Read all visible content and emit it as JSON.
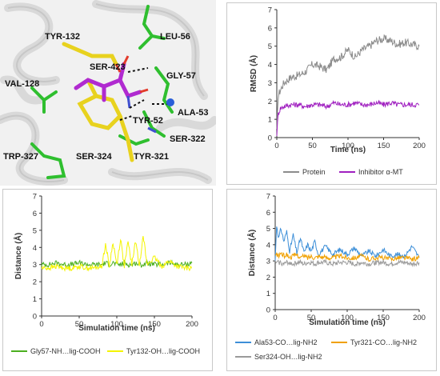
{
  "molecule": {
    "labels": [
      "TYR-132",
      "LEU-56",
      "SER-423",
      "GLY-57",
      "VAL-128",
      "ALA-53",
      "TYR-52",
      "SER-322",
      "TRP-327",
      "SER-324",
      "TYR-321"
    ]
  },
  "colors": {
    "protein": "#8c8c8c",
    "inhibitor": "#a020c0",
    "gly57": "#4caf20",
    "tyr132": "#f4f400",
    "ala53": "#3d8fd8",
    "tyr321": "#f0a000",
    "ser324": "#9a9a9a"
  },
  "chart_data": [
    {
      "type": "line",
      "id": "rmsd",
      "xlabel": "Time (ns)",
      "ylabel": "RMSD (Å)",
      "xlim": [
        0,
        200
      ],
      "ylim": [
        0,
        7
      ],
      "xticks": [
        "0",
        "50",
        "100",
        "150",
        "200"
      ],
      "yticks": [
        "0",
        "1",
        "2",
        "3",
        "4",
        "5",
        "6",
        "7"
      ],
      "legend_position": "bottom",
      "x": [
        0,
        2,
        5,
        10,
        20,
        30,
        40,
        50,
        60,
        70,
        80,
        90,
        100,
        110,
        120,
        130,
        140,
        150,
        160,
        170,
        180,
        190,
        200
      ],
      "series": [
        {
          "name": "Protein",
          "color_key": "protein",
          "values": [
            0.3,
            2.3,
            2.6,
            3.0,
            3.3,
            3.4,
            3.6,
            4.0,
            3.9,
            3.7,
            4.3,
            4.4,
            4.8,
            4.4,
            4.8,
            5.0,
            5.3,
            5.4,
            5.3,
            5.1,
            5.2,
            5.1,
            5.0
          ]
        },
        {
          "name": "Inhibitor α-MT",
          "color_key": "inhibitor",
          "values": [
            0.2,
            1.3,
            1.6,
            1.7,
            1.8,
            1.8,
            1.7,
            1.8,
            1.8,
            1.7,
            1.9,
            1.8,
            1.8,
            1.9,
            1.8,
            1.8,
            1.9,
            1.8,
            1.9,
            1.8,
            1.8,
            1.8,
            1.8
          ]
        }
      ]
    },
    {
      "type": "line",
      "id": "gly_tyr",
      "xlabel": "Simulation time (ns)",
      "ylabel": "Distance (Å)",
      "xlim": [
        0,
        200
      ],
      "ylim": [
        0,
        7
      ],
      "xticks": [
        "0",
        "50",
        "100",
        "150",
        "200"
      ],
      "yticks": [
        "0",
        "1",
        "2",
        "3",
        "4",
        "5",
        "6",
        "7"
      ],
      "legend_position": "bottom",
      "x": [
        0,
        10,
        20,
        30,
        40,
        50,
        60,
        70,
        80,
        85,
        90,
        95,
        100,
        105,
        110,
        115,
        120,
        125,
        130,
        135,
        140,
        150,
        160,
        170,
        180,
        190,
        200
      ],
      "series": [
        {
          "name": "Gly57-NH…lig-COOH",
          "color_key": "gly57",
          "values": [
            3.0,
            3.0,
            3.1,
            3.0,
            3.0,
            3.1,
            3.0,
            3.0,
            3.0,
            3.1,
            3.0,
            3.1,
            3.0,
            3.0,
            3.1,
            3.0,
            3.0,
            3.1,
            3.0,
            3.0,
            3.1,
            3.0,
            3.0,
            3.1,
            3.0,
            3.0,
            3.1
          ]
        },
        {
          "name": "Tyr132-OH…lig-COOH",
          "color_key": "tyr132",
          "values": [
            2.8,
            2.8,
            2.9,
            2.8,
            2.8,
            2.9,
            2.8,
            2.8,
            2.9,
            4.2,
            2.9,
            4.3,
            3.0,
            4.5,
            2.9,
            4.3,
            3.0,
            4.4,
            2.9,
            4.8,
            3.0,
            3.4,
            2.9,
            3.2,
            2.9,
            2.8,
            2.8
          ]
        }
      ]
    },
    {
      "type": "line",
      "id": "ala_tyr_ser",
      "xlabel": "Simulation time (ns)",
      "ylabel": "Distance (Å)",
      "xlim": [
        0,
        200
      ],
      "ylim": [
        0,
        7
      ],
      "xticks": [
        "0",
        "50",
        "100",
        "150",
        "200"
      ],
      "yticks": [
        "0",
        "1",
        "2",
        "3",
        "4",
        "5",
        "6",
        "7"
      ],
      "legend_position": "bottom",
      "x": [
        0,
        2,
        5,
        8,
        12,
        16,
        20,
        25,
        30,
        35,
        40,
        45,
        50,
        55,
        60,
        70,
        80,
        90,
        100,
        110,
        120,
        130,
        140,
        150,
        160,
        170,
        180,
        190,
        200
      ],
      "series": [
        {
          "name": "Ala53-CO…lig-NH2",
          "color_key": "ala53",
          "values": [
            3.0,
            5.2,
            4.4,
            5.0,
            4.2,
            4.8,
            3.6,
            4.6,
            3.5,
            4.4,
            3.5,
            4.0,
            3.6,
            4.2,
            3.4,
            3.9,
            3.4,
            3.7,
            3.4,
            3.8,
            3.3,
            3.6,
            3.3,
            3.7,
            3.3,
            3.4,
            3.3,
            3.9,
            3.2
          ]
        },
        {
          "name": "Tyr321-CO…lig-NH2",
          "color_key": "tyr321",
          "values": [
            3.3,
            3.4,
            3.3,
            3.5,
            3.3,
            3.4,
            3.2,
            3.3,
            3.4,
            3.2,
            3.3,
            3.2,
            3.3,
            3.2,
            3.3,
            3.2,
            3.2,
            3.3,
            3.2,
            3.2,
            3.3,
            3.1,
            3.2,
            3.2,
            3.1,
            3.2,
            3.2,
            3.1,
            3.2
          ]
        },
        {
          "name": "Ser324-OH…lig-NH2",
          "color_key": "ser324",
          "values": [
            2.9,
            2.9,
            2.9,
            2.9,
            2.8,
            2.9,
            2.9,
            2.8,
            2.9,
            2.9,
            2.8,
            2.9,
            2.9,
            2.8,
            2.9,
            2.9,
            2.8,
            2.9,
            2.9,
            2.8,
            2.9,
            2.8,
            2.9,
            2.9,
            2.8,
            2.9,
            2.9,
            2.8,
            2.9
          ]
        }
      ]
    }
  ]
}
